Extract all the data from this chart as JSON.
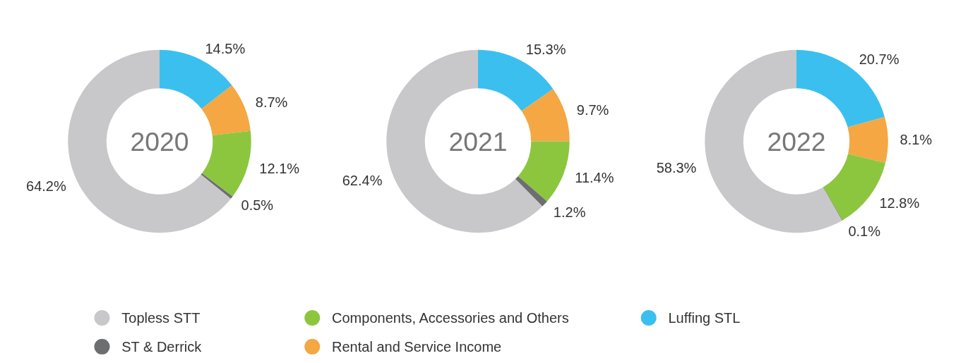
{
  "chart_data": [
    {
      "type": "donut",
      "title": "2020",
      "categories": [
        "Luffing STL",
        "Rental and Service Income",
        "Components, Accessories and Others",
        "ST & Derrick",
        "Topless STT"
      ],
      "values": [
        14.5,
        8.7,
        12.1,
        0.5,
        64.2
      ],
      "value_labels": [
        "14.5%",
        "8.7%",
        "12.1%",
        "0.5%",
        "64.2%"
      ],
      "colors": [
        "#3bbfef",
        "#f4a742",
        "#8cc63f",
        "#6d6e70",
        "#c8c8ca"
      ],
      "legend": "bottom"
    },
    {
      "type": "donut",
      "title": "2021",
      "categories": [
        null,
        null,
        null,
        null,
        null
      ],
      "values": [
        15.3,
        9.7,
        11.4,
        1.2,
        62.4
      ],
      "value_labels": [
        "15.3%",
        "9.7%",
        "11.4%",
        "1.2%",
        "62.4%"
      ],
      "colors": [
        "#3bbfef",
        "#f4a742",
        "#8cc63f",
        "#6d6e70",
        "#c8c8ca"
      ]
    },
    {
      "type": "donut",
      "title": "2022",
      "categories": [
        null,
        null,
        null,
        null,
        null
      ],
      "values": [
        20.7,
        8.1,
        12.8,
        0.1,
        58.3
      ],
      "value_labels": [
        "20.7%",
        "8.1%",
        "12.8%",
        "0.1%",
        "58.3%"
      ],
      "colors": [
        "#3bbfef",
        "#f4a742",
        "#8cc63f",
        "#6d6e70",
        "#c8c8ca"
      ]
    }
  ]
}
